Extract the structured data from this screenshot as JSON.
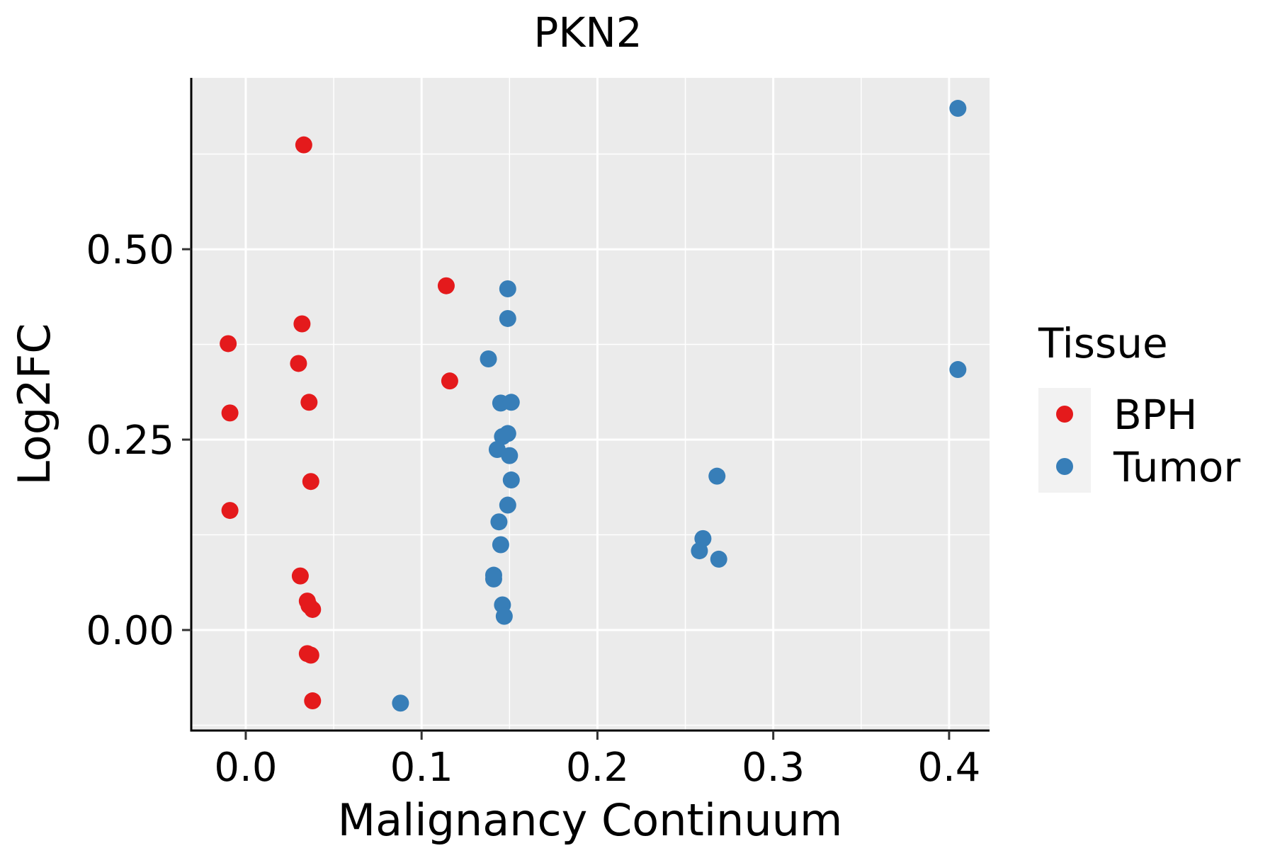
{
  "chart_data": {
    "type": "scatter",
    "title": "PKN2",
    "xlabel": "Malignancy Continuum",
    "ylabel": "Log2FC",
    "xlim": [
      -0.031,
      0.423
    ],
    "ylim": [
      -0.132,
      0.725
    ],
    "x_ticks": [
      0.0,
      0.1,
      0.2,
      0.3,
      0.4
    ],
    "x_tick_labels": [
      "0.0",
      "0.1",
      "0.2",
      "0.3",
      "0.4"
    ],
    "y_ticks": [
      0.0,
      0.25,
      0.5
    ],
    "y_tick_labels": [
      "0.00",
      "0.25",
      "0.50"
    ],
    "x_minor": [
      0.05,
      0.15,
      0.25,
      0.35
    ],
    "y_minor": [
      -0.125,
      0.125,
      0.375,
      0.625
    ],
    "grid": true,
    "legend": {
      "title": "Tissue",
      "position": "right",
      "entries": [
        {
          "label": "BPH",
          "color": "#E41A1C"
        },
        {
          "label": "Tumor",
          "color": "#377EB8"
        }
      ]
    },
    "series": [
      {
        "name": "BPH",
        "color": "#E41A1C",
        "points": [
          [
            0.033,
            0.637
          ],
          [
            0.032,
            0.402
          ],
          [
            0.03,
            0.35
          ],
          [
            0.036,
            0.299
          ],
          [
            0.037,
            0.195
          ],
          [
            -0.01,
            0.376
          ],
          [
            -0.009,
            0.285
          ],
          [
            -0.009,
            0.157
          ],
          [
            0.031,
            0.071
          ],
          [
            0.035,
            0.038
          ],
          [
            0.036,
            0.032
          ],
          [
            0.038,
            0.027
          ],
          [
            0.035,
            -0.031
          ],
          [
            0.037,
            -0.033
          ],
          [
            0.038,
            -0.093
          ],
          [
            0.114,
            0.452
          ],
          [
            0.116,
            0.327
          ]
        ]
      },
      {
        "name": "Tumor",
        "color": "#377EB8",
        "points": [
          [
            0.405,
            0.685
          ],
          [
            0.405,
            0.342
          ],
          [
            0.088,
            -0.096
          ],
          [
            0.149,
            0.448
          ],
          [
            0.149,
            0.409
          ],
          [
            0.138,
            0.356
          ],
          [
            0.145,
            0.298
          ],
          [
            0.151,
            0.299
          ],
          [
            0.146,
            0.254
          ],
          [
            0.149,
            0.258
          ],
          [
            0.143,
            0.237
          ],
          [
            0.15,
            0.229
          ],
          [
            0.151,
            0.197
          ],
          [
            0.149,
            0.164
          ],
          [
            0.144,
            0.142
          ],
          [
            0.145,
            0.112
          ],
          [
            0.141,
            0.072
          ],
          [
            0.141,
            0.067
          ],
          [
            0.146,
            0.033
          ],
          [
            0.147,
            0.018
          ],
          [
            0.268,
            0.202
          ],
          [
            0.26,
            0.12
          ],
          [
            0.258,
            0.104
          ],
          [
            0.269,
            0.093
          ]
        ]
      }
    ]
  }
}
